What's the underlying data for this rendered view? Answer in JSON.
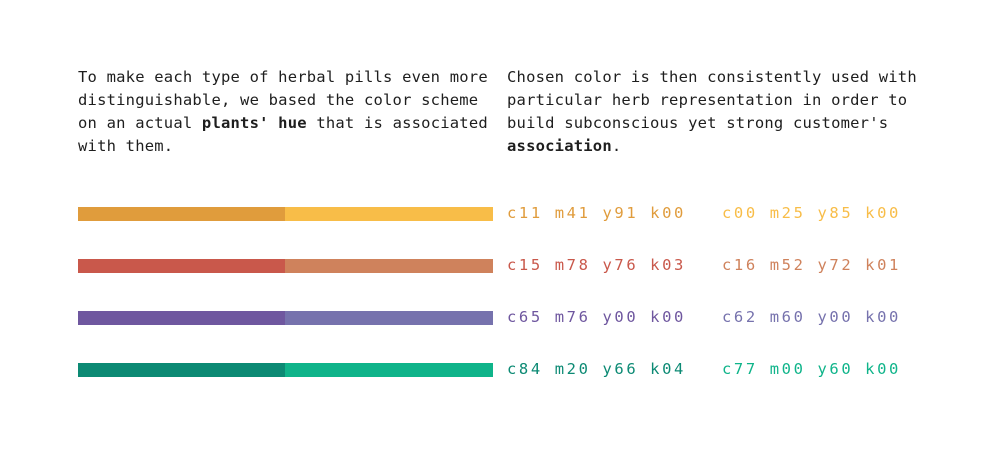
{
  "intro_left": {
    "text_before": "To make each type of herbal pills even more distinguishable, we based the color scheme on an actual ",
    "bold": "plants' hue",
    "text_after": " that is associated with them."
  },
  "intro_right": {
    "text_before": "Chosen color is then consistently used with particular herb representation in order to build subconscious yet strong customer's ",
    "bold": "association",
    "text_after": "."
  },
  "swatches": [
    {
      "primary": {
        "cmyk": "c11 m41 y91 k00",
        "hex": "#e09c3c"
      },
      "secondary": {
        "cmyk": "c00 m25 y85 k00",
        "hex": "#f8bd48"
      }
    },
    {
      "primary": {
        "cmyk": "c15 m78 y76 k03",
        "hex": "#c9584b"
      },
      "secondary": {
        "cmyk": "c16 m52 y72 k01",
        "hex": "#cf825c"
      }
    },
    {
      "primary": {
        "cmyk": "c65 m76 y00 k00",
        "hex": "#6f579f"
      },
      "secondary": {
        "cmyk": "c62 m60 y00 k00",
        "hex": "#7672ad"
      }
    },
    {
      "primary": {
        "cmyk": "c84 m20 y66 k04",
        "hex": "#0c8a74"
      },
      "secondary": {
        "cmyk": "c77 m00 y60 k00",
        "hex": "#0fb48a"
      }
    }
  ]
}
